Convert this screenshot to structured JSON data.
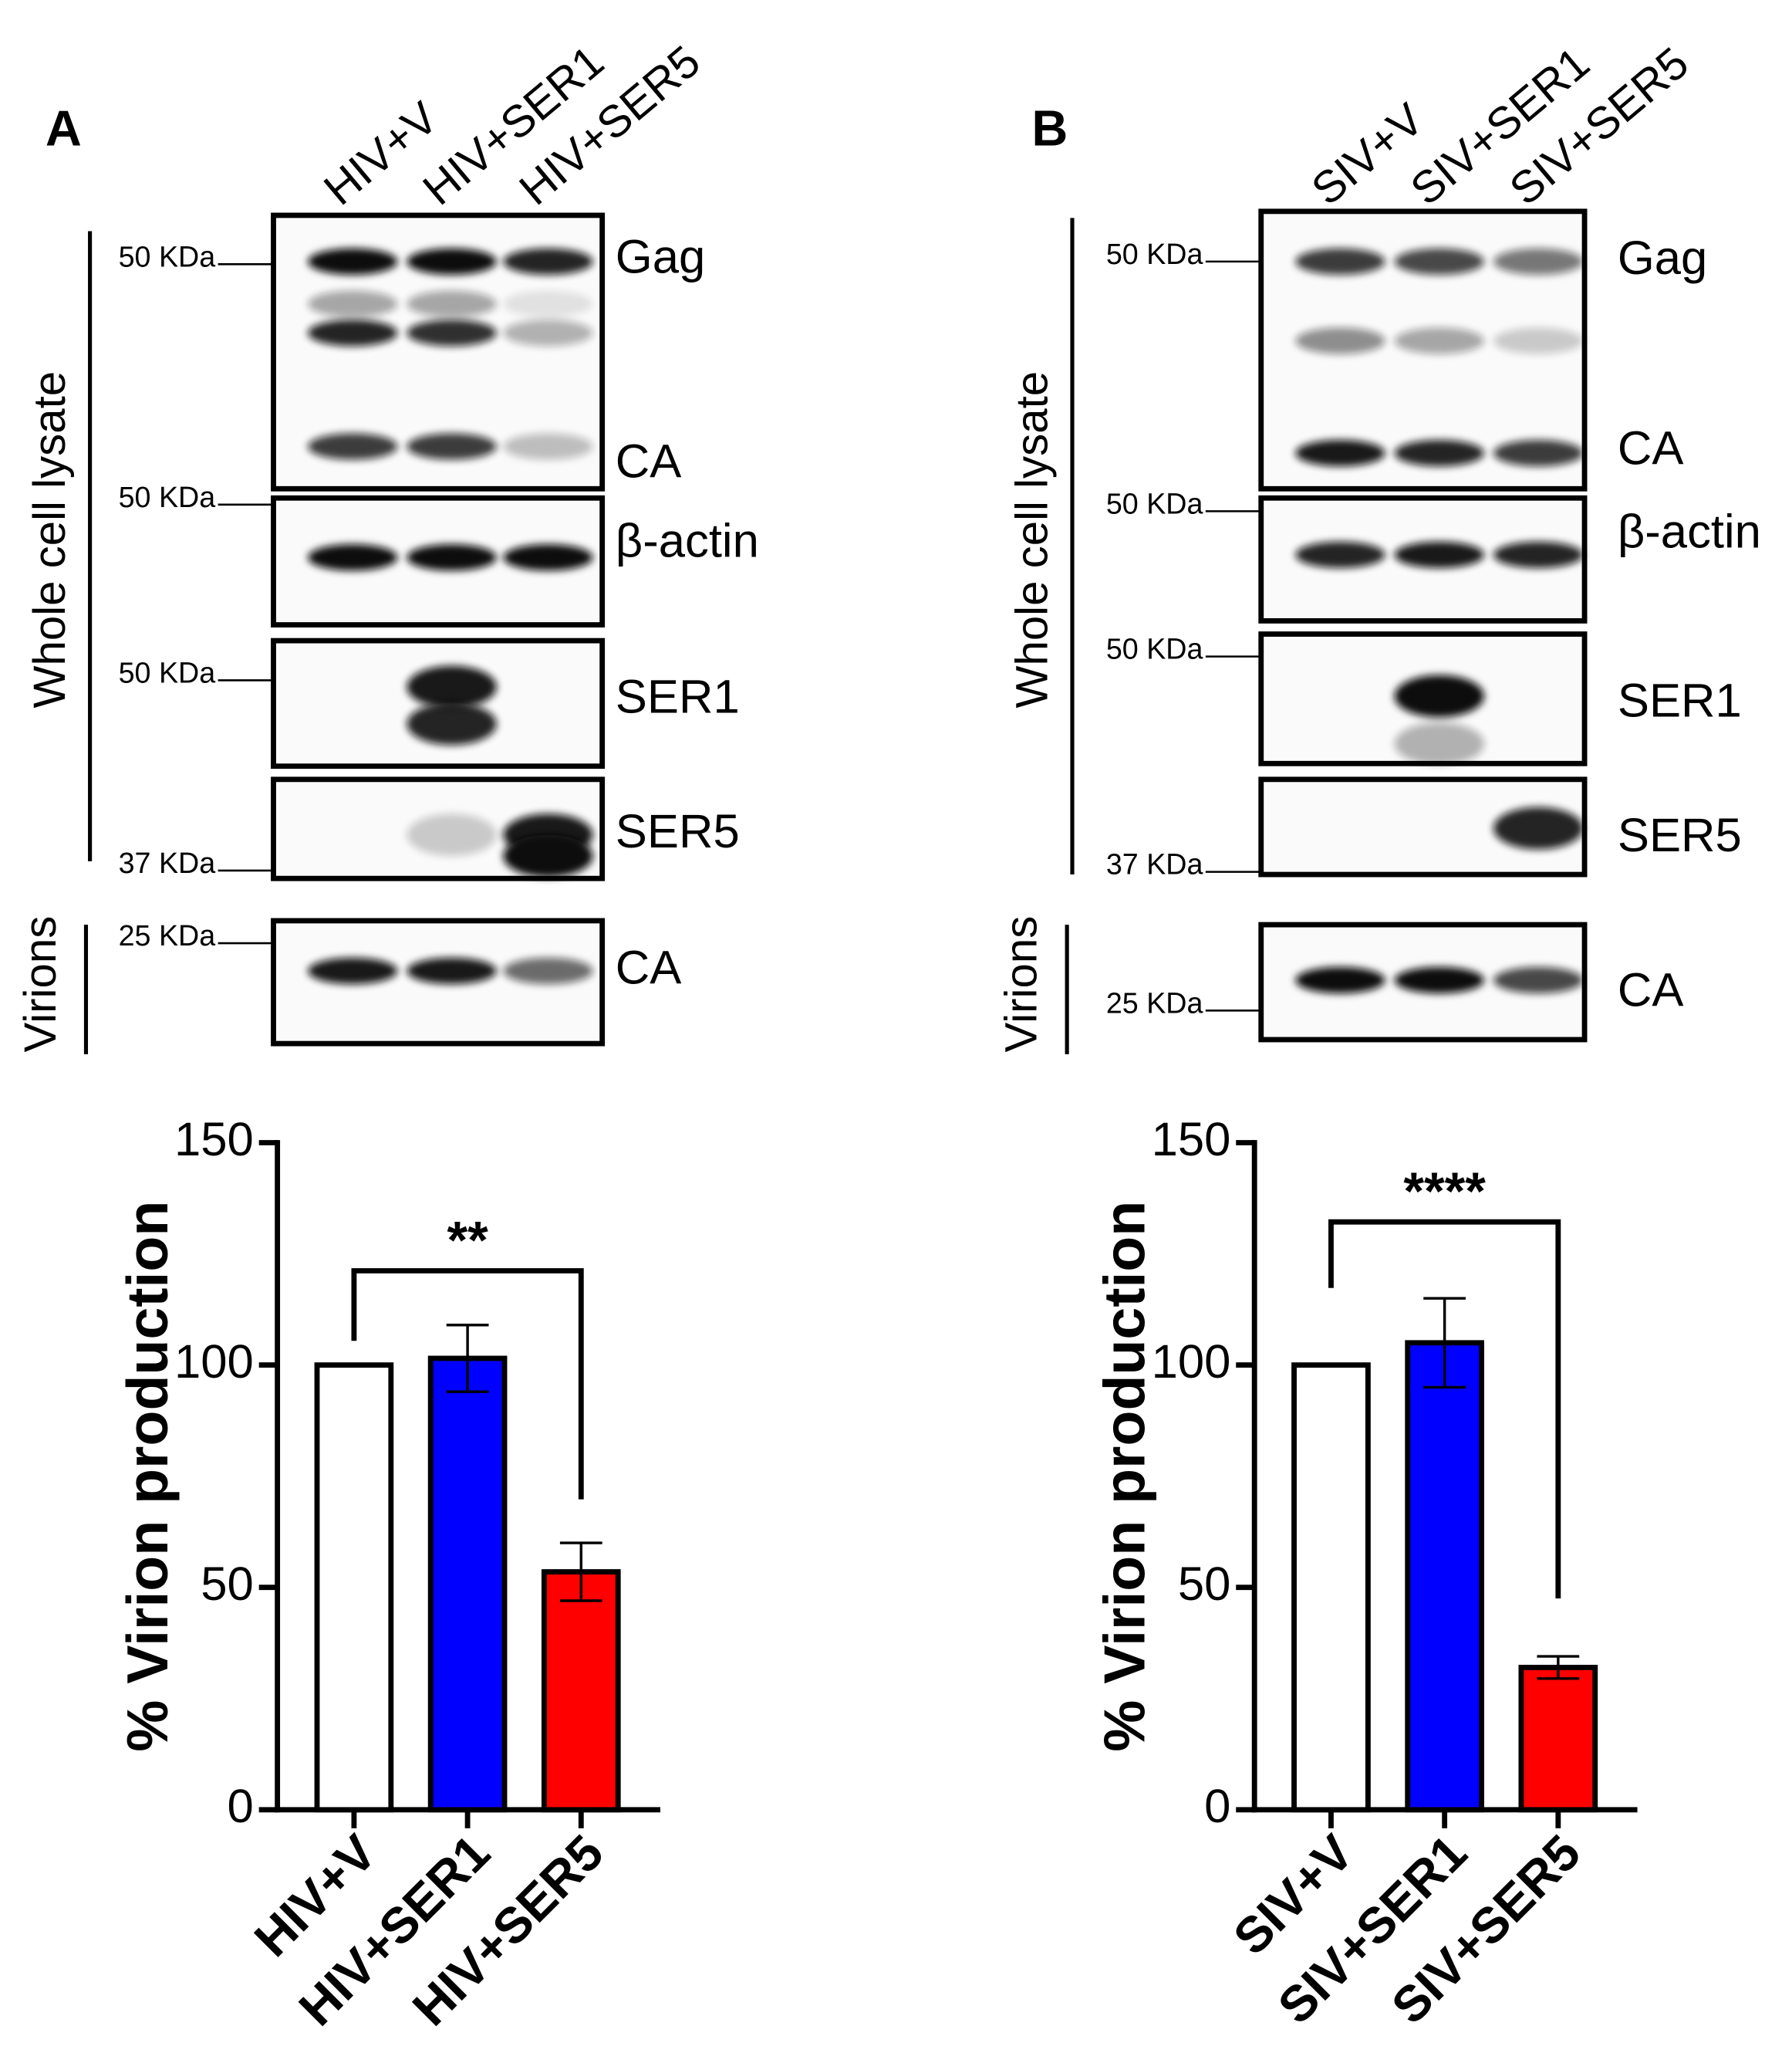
{
  "panels": [
    {
      "letter": "A",
      "lanes": [
        "HIV+V",
        "HIV+SER1",
        "HIV+SER5"
      ],
      "whole_label": "Whole cell lysate",
      "virion_label": "Virions",
      "blots": [
        {
          "markers": [
            "50 KDa"
          ],
          "labels": [
            "Gag",
            "CA"
          ]
        },
        {
          "markers": [
            "50 KDa"
          ],
          "labels": [
            "β-actin"
          ]
        },
        {
          "markers": [
            "50 KDa"
          ],
          "labels": [
            "SER1"
          ]
        },
        {
          "markers": [
            "37 KDa"
          ],
          "labels": [
            "SER5"
          ]
        },
        {
          "markers": [
            "25 KDa"
          ],
          "labels": [
            "CA"
          ]
        }
      ]
    },
    {
      "letter": "B",
      "lanes": [
        "SIV+V",
        "SIV+SER1",
        "SIV+SER5"
      ],
      "whole_label": "Whole cell lysate",
      "virion_label": "Virions",
      "blots": [
        {
          "markers": [
            "50 KDa"
          ],
          "labels": [
            "Gag",
            "CA"
          ]
        },
        {
          "markers": [
            "50 KDa"
          ],
          "labels": [
            "β-actin"
          ]
        },
        {
          "markers": [
            "50 KDa"
          ],
          "labels": [
            "SER1"
          ]
        },
        {
          "markers": [
            "37 KDa"
          ],
          "labels": [
            "SER5"
          ]
        },
        {
          "markers": [
            "25 KDa"
          ],
          "labels": [
            "CA"
          ]
        }
      ]
    }
  ],
  "chart_data": [
    {
      "type": "bar",
      "y_label": "% Virion production",
      "categories": [
        "HIV+V",
        "HIV+SER1",
        "HIV+SER5"
      ],
      "values": [
        100,
        101.5,
        53.5
      ],
      "errors": [
        null,
        7.5,
        6.5
      ],
      "colors": [
        "#ffffff",
        "#0000ff",
        "#ff0000"
      ],
      "ylim": [
        0,
        150
      ],
      "yticks": [
        0,
        50,
        100,
        150
      ],
      "significance": "**"
    },
    {
      "type": "bar",
      "y_label": "% Virion production",
      "categories": [
        "SIV+V",
        "SIV+SER1",
        "SIV+SER5"
      ],
      "values": [
        100,
        105,
        32
      ],
      "errors": [
        null,
        10,
        2.5
      ],
      "colors": [
        "#ffffff",
        "#0000ff",
        "#ff0000"
      ],
      "ylim": [
        0,
        150
      ],
      "yticks": [
        0,
        50,
        100,
        150
      ],
      "significance": "****"
    }
  ]
}
